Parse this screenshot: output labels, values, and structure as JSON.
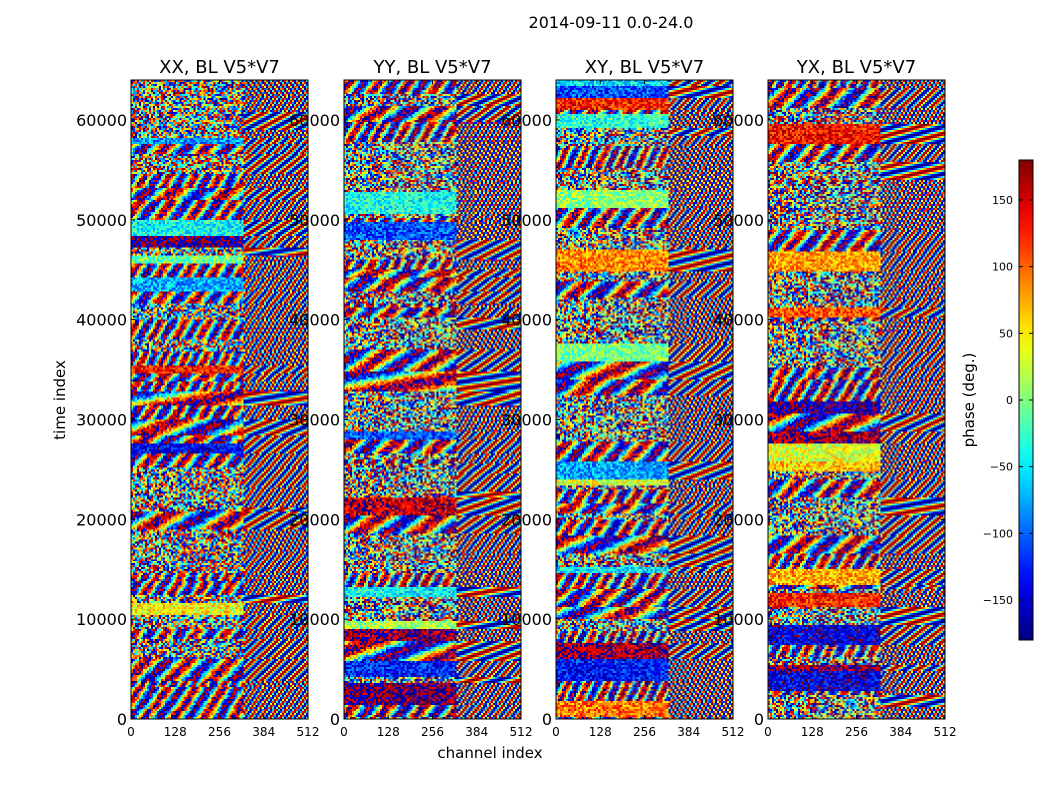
{
  "chart_data": {
    "type": "heatmap",
    "suptitle": "2014-09-11 0.0-24.0",
    "xlabel": "channel index",
    "ylabel": "time index",
    "xlim": [
      0,
      512
    ],
    "ylim": [
      0,
      64000
    ],
    "x_ticks": [
      0,
      128,
      256,
      384,
      512
    ],
    "y_ticks": [
      0,
      10000,
      20000,
      30000,
      40000,
      50000,
      60000
    ],
    "colorbar": {
      "label": "phase (deg.)",
      "range": [
        -180,
        180
      ],
      "ticks": [
        -150,
        -100,
        -50,
        0,
        50,
        100,
        150
      ],
      "tick_labels": [
        "−150",
        "−100",
        "−50",
        "0",
        "50",
        "100",
        "150"
      ],
      "colormap": "jet"
    },
    "panels": [
      {
        "title": "XX, BL V5*V7",
        "polarization": "XX"
      },
      {
        "title": "YY, BL V5*V7",
        "polarization": "YY"
      },
      {
        "title": "XY, BL V5*V7",
        "polarization": "XY"
      },
      {
        "title": "YX, BL V5*V7",
        "polarization": "YX"
      }
    ]
  }
}
